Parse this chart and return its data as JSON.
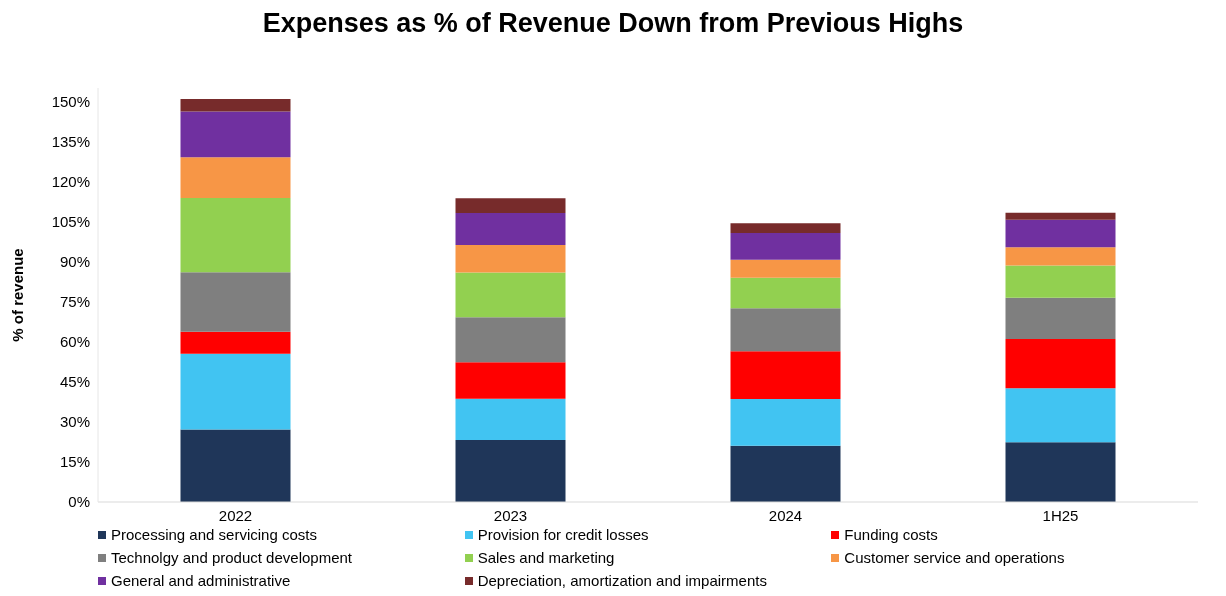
{
  "chart_data": {
    "type": "bar",
    "title": "Expenses as % of Revenue Down from Previous Highs",
    "ylabel": "% of revenue",
    "categories": [
      "2022",
      "2023",
      "2024",
      "1H25"
    ],
    "stacked": true,
    "legend": "bottom",
    "grid": false,
    "ylim": [
      0,
      155
    ],
    "yticks": [
      {
        "value": 0,
        "label": "0%"
      },
      {
        "value": 15,
        "label": "15%"
      },
      {
        "value": 30,
        "label": "30%"
      },
      {
        "value": 45,
        "label": "45%"
      },
      {
        "value": 60,
        "label": "60%"
      },
      {
        "value": 75,
        "label": "75%"
      },
      {
        "value": 90,
        "label": "90%"
      },
      {
        "value": 105,
        "label": "105%"
      },
      {
        "value": 120,
        "label": "120%"
      },
      {
        "value": 135,
        "label": "135%"
      },
      {
        "value": 150,
        "label": "150%"
      }
    ],
    "series": [
      {
        "name": "Processing and servicing costs",
        "color": "#1f3659",
        "values": [
          27.1,
          23.2,
          21.1,
          22.4
        ]
      },
      {
        "name": "Provision for credit losses",
        "color": "#41c4f2",
        "values": [
          28.4,
          15.5,
          17.5,
          20.2
        ]
      },
      {
        "name": "Funding costs",
        "color": "#ff0000",
        "values": [
          8.2,
          13.6,
          17.8,
          18.4
        ]
      },
      {
        "name": "Technolgy and product development",
        "color": "#7f7f7f",
        "values": [
          22.3,
          16.9,
          16.1,
          15.5
        ]
      },
      {
        "name": "Sales and marketing",
        "color": "#92d050",
        "values": [
          27.8,
          16.7,
          11.5,
          12.0
        ]
      },
      {
        "name": "Customer service and operations",
        "color": "#f79646",
        "values": [
          15.3,
          10.3,
          6.7,
          6.9
        ]
      },
      {
        "name": "General and administrative",
        "color": "#7030a0",
        "values": [
          17.1,
          12.0,
          10.0,
          10.3
        ]
      },
      {
        "name": "Depreciation, amortization and impairments",
        "color": "#772b2b",
        "values": [
          4.7,
          5.5,
          3.7,
          2.6
        ]
      }
    ]
  }
}
